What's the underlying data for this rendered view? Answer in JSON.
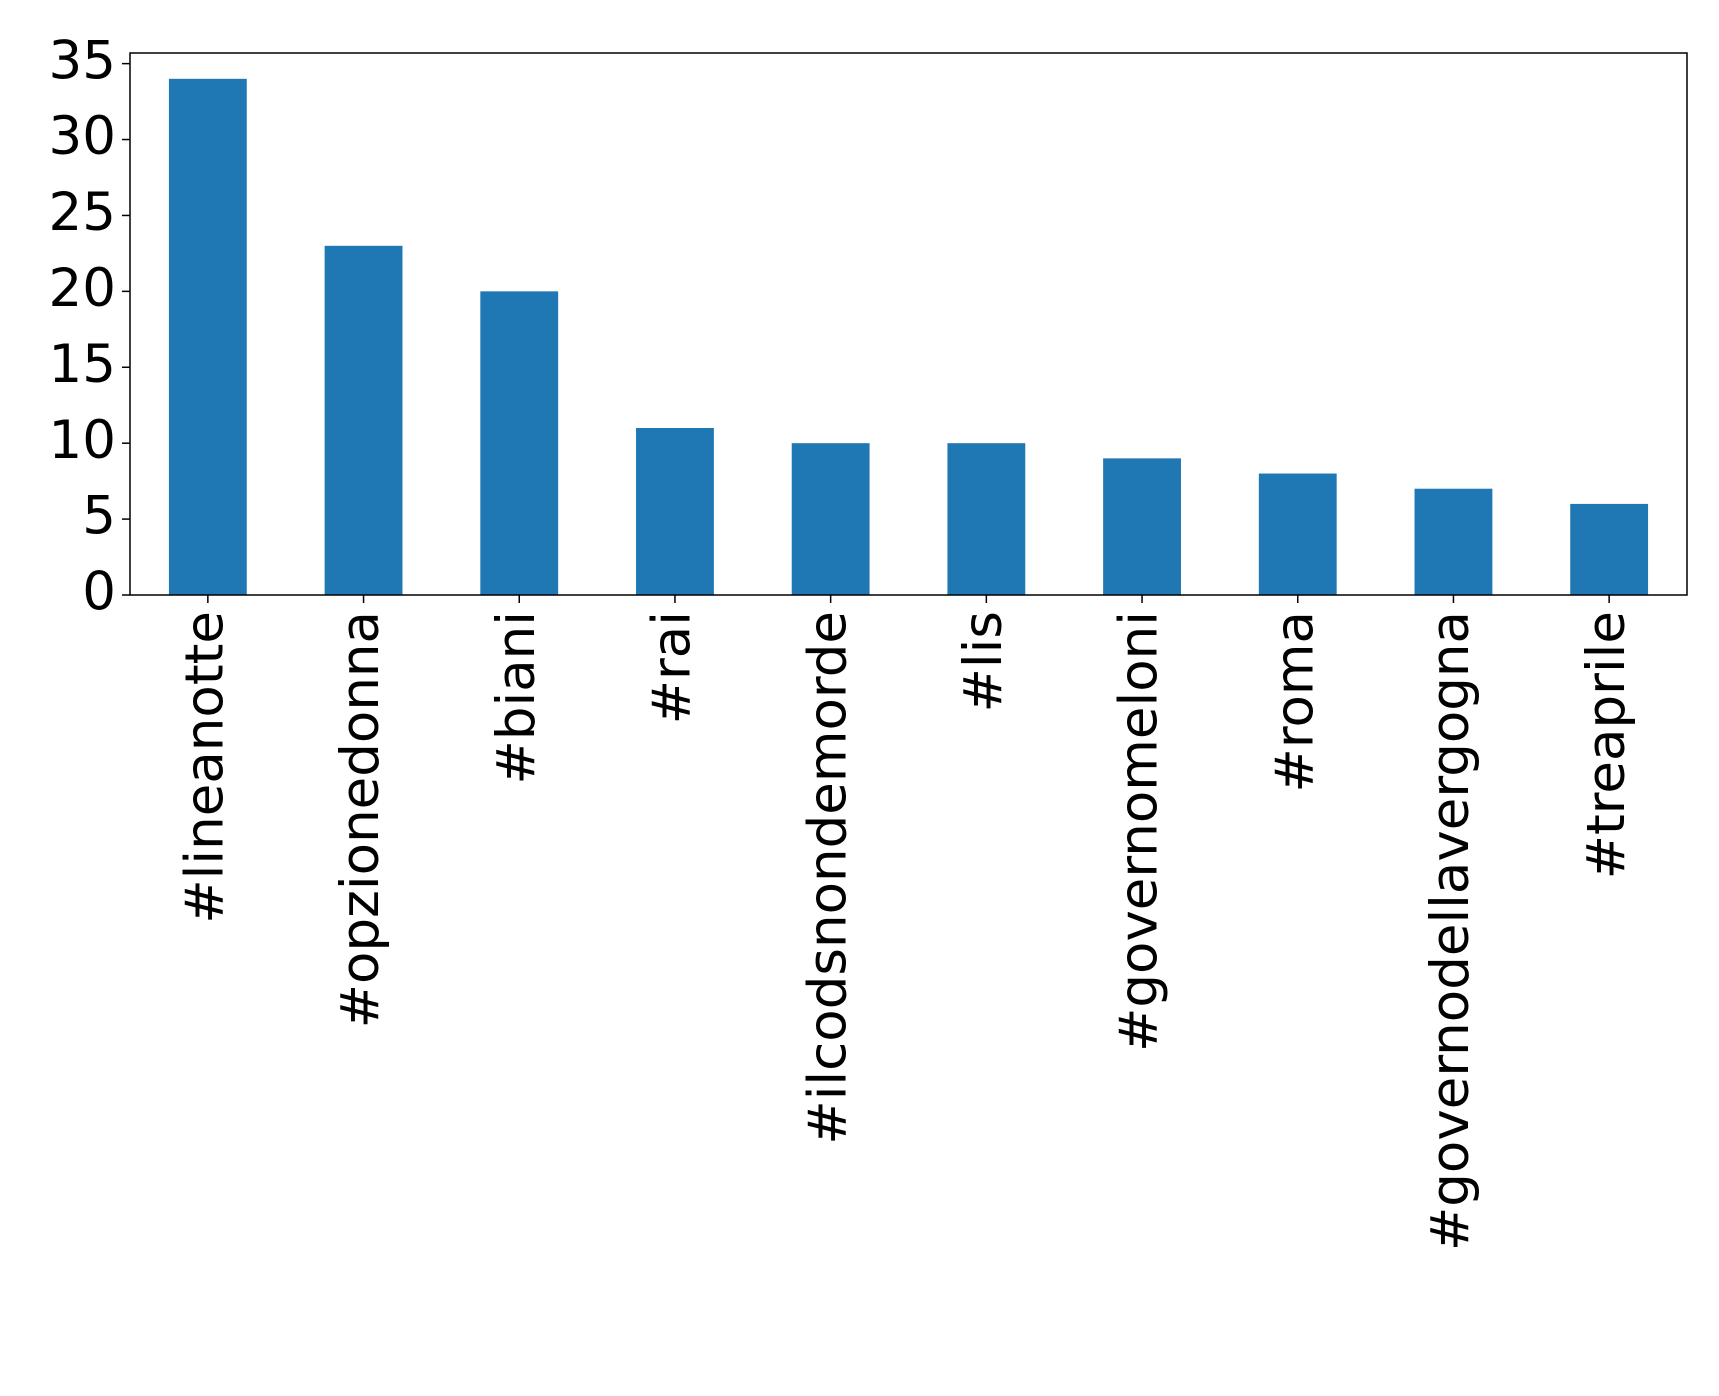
{
  "chart_data": {
    "type": "bar",
    "categories": [
      "#lineanotte",
      "#opzionedonna",
      "#biani",
      "#rai",
      "#ilcodsnondemorde",
      "#lis",
      "#governomeloni",
      "#roma",
      "#governodellavergogna",
      "#treaprile"
    ],
    "values": [
      34,
      23,
      20,
      11,
      10,
      10,
      9,
      8,
      7,
      6
    ],
    "color": "#1f77b4",
    "ylim": [
      0,
      35.7
    ],
    "yticks": [
      0,
      5,
      10,
      15,
      20,
      25,
      30,
      35
    ],
    "grid": false
  }
}
